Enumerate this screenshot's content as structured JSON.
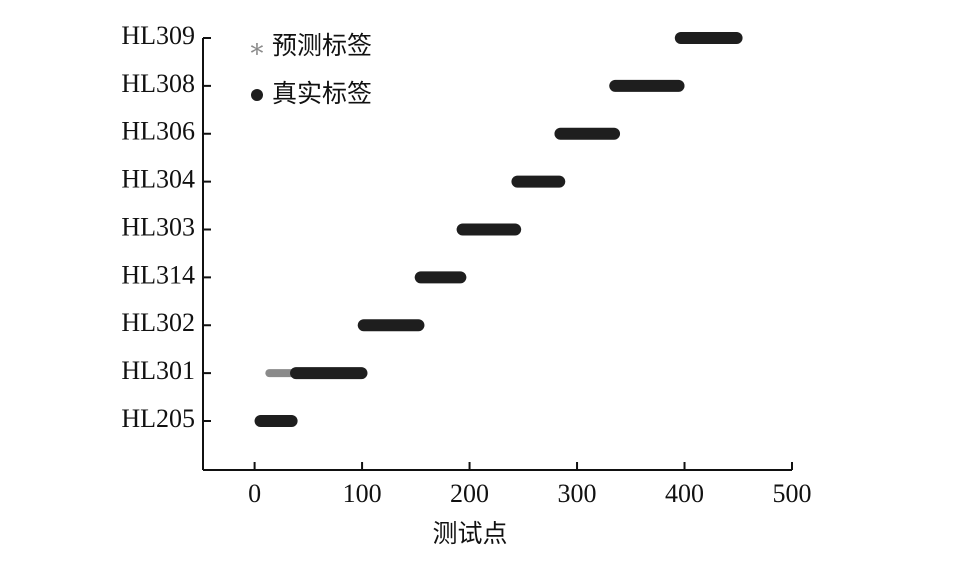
{
  "chart_data": {
    "type": "range",
    "xlabel": "测试点",
    "categories": [
      "HL205",
      "HL301",
      "HL302",
      "HL314",
      "HL303",
      "HL304",
      "HL306",
      "HL308",
      "HL309"
    ],
    "series": [
      {
        "name": "预测标签",
        "color": "#8a8a8a",
        "marker": "asterisk",
        "values": [
          [
            0,
            40
          ],
          [
            10,
            105
          ],
          [
            96,
            158
          ],
          [
            149,
            197
          ],
          [
            188,
            248
          ],
          [
            239,
            289
          ],
          [
            279,
            340
          ],
          [
            330,
            400
          ],
          [
            391,
            454
          ]
        ]
      },
      {
        "name": "真实标签",
        "color": "#1e1e1e",
        "marker": "dot",
        "values": [
          [
            0,
            40
          ],
          [
            33,
            105
          ],
          [
            96,
            158
          ],
          [
            149,
            197
          ],
          [
            188,
            248
          ],
          [
            239,
            289
          ],
          [
            279,
            340
          ],
          [
            330,
            400
          ],
          [
            391,
            454
          ]
        ]
      }
    ],
    "xlim": [
      -48,
      500
    ],
    "xticks": [
      0,
      100,
      200,
      300,
      400,
      500
    ]
  }
}
